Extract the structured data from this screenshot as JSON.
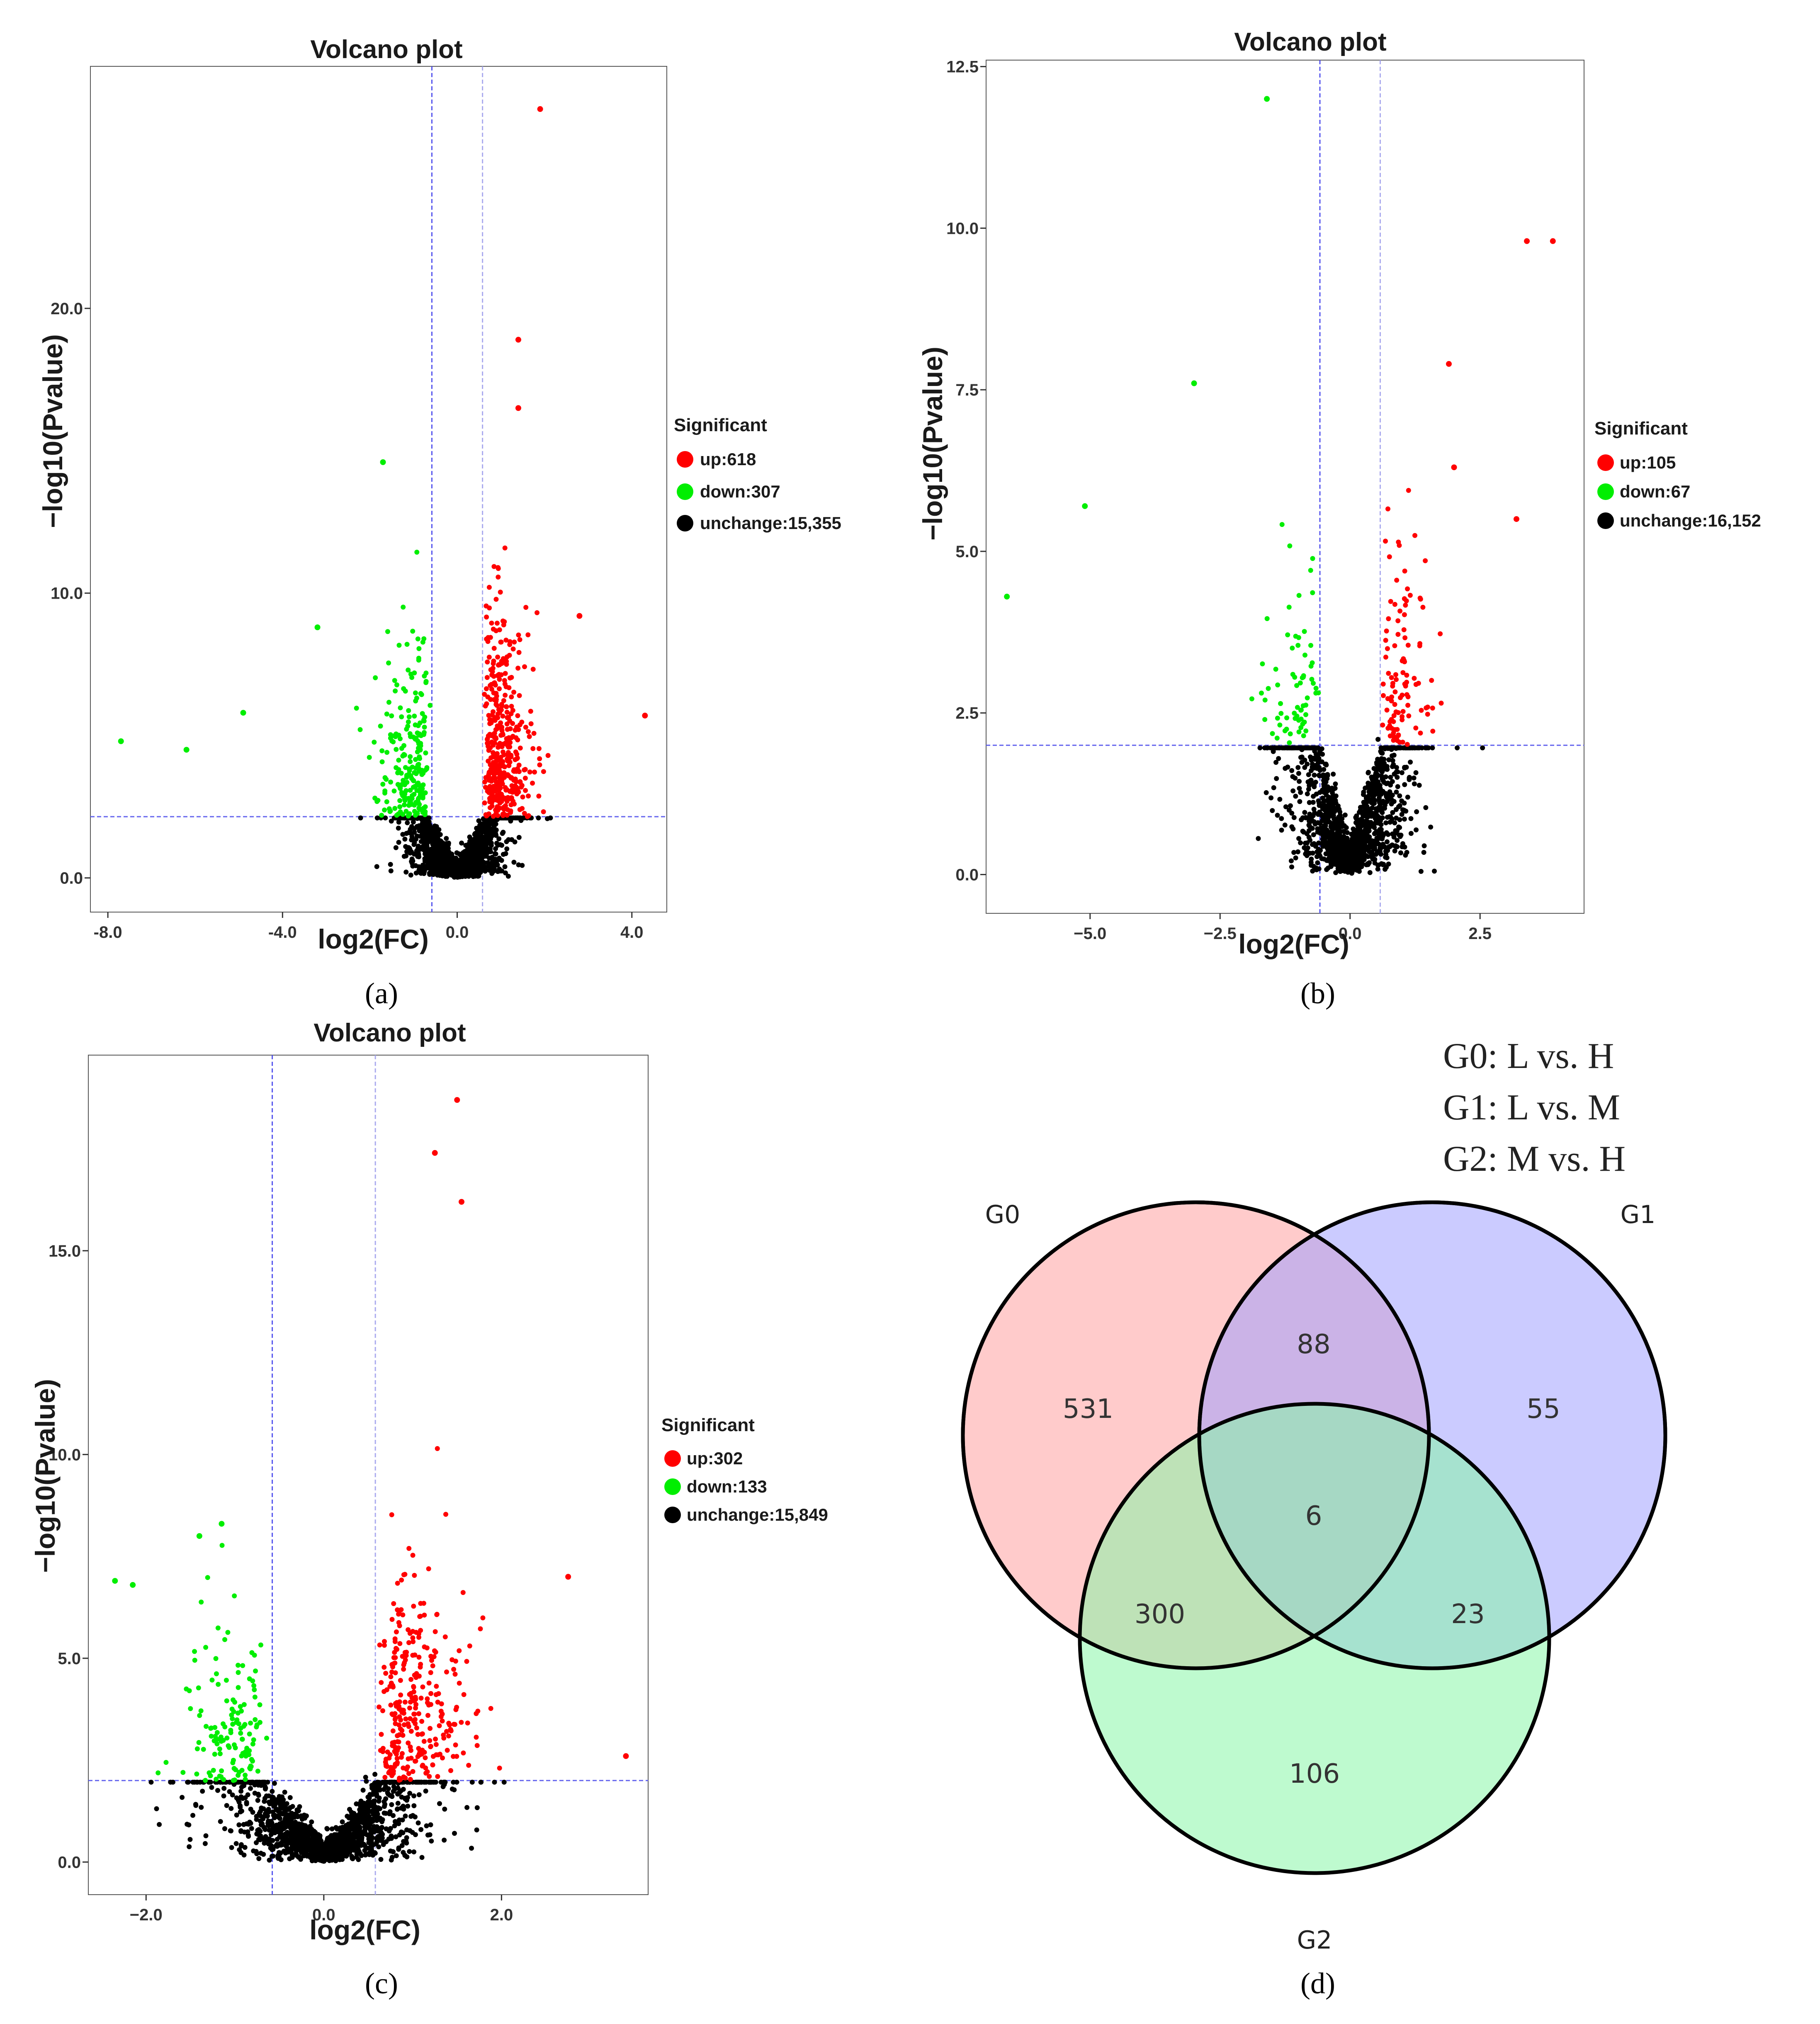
{
  "chart_data": [
    {
      "type": "scatter",
      "panel_label": "(a)",
      "title": "Volcano plot",
      "xlabel": "log2(FC)",
      "ylabel": "−log10(Pvalue)",
      "xlim": [
        -8.4,
        4.8
      ],
      "ylim": [
        -1.2,
        28.5
      ],
      "xticks": [
        -8.0,
        -4.0,
        0.0,
        4.0
      ],
      "xtick_labels": [
        "-8.0",
        "-4.0",
        "0.0",
        "4.0"
      ],
      "yticks": [
        0.0,
        10.0,
        20.0
      ],
      "ytick_labels": [
        "0.0",
        "10.0",
        "20.0"
      ],
      "vlines": [
        -0.58,
        0.58
      ],
      "hline": 2.15,
      "legend": {
        "title": "Significant",
        "entries": [
          {
            "label": "up:618",
            "color": "#ff0000"
          },
          {
            "label": "down:307",
            "color": "#00ee00"
          },
          {
            "label": "unchange:15,355",
            "color": "#000000"
          }
        ]
      },
      "series": [
        {
          "name": "up",
          "count": 618,
          "color": "#ff0000"
        },
        {
          "name": "down",
          "count": 307,
          "color": "#00ee00"
        },
        {
          "name": "unchange",
          "count": 15355,
          "color": "#000000"
        }
      ],
      "notable_points": [
        {
          "x": 1.9,
          "y": 27.0,
          "group": "up"
        },
        {
          "x": 1.4,
          "y": 18.9,
          "group": "up"
        },
        {
          "x": 1.4,
          "y": 16.5,
          "group": "up"
        },
        {
          "x": 2.8,
          "y": 9.2,
          "group": "up"
        },
        {
          "x": 4.3,
          "y": 5.7,
          "group": "up"
        },
        {
          "x": -1.7,
          "y": 14.6,
          "group": "down"
        },
        {
          "x": -3.2,
          "y": 8.8,
          "group": "down"
        },
        {
          "x": -7.7,
          "y": 4.8,
          "group": "down"
        },
        {
          "x": -6.2,
          "y": 4.5,
          "group": "down"
        },
        {
          "x": -4.9,
          "y": 5.8,
          "group": "down"
        }
      ]
    },
    {
      "type": "scatter",
      "panel_label": "(b)",
      "title": "Volcano plot",
      "xlabel": "log2(FC)",
      "ylabel": "−log10(Pvalue)",
      "xlim": [
        -7.0,
        4.5
      ],
      "ylim": [
        -0.6,
        12.6
      ],
      "xticks": [
        -5.0,
        -2.5,
        0.0,
        2.5
      ],
      "xtick_labels": [
        "−5.0",
        "−2.5",
        "0.0",
        "2.5"
      ],
      "yticks": [
        0.0,
        2.5,
        5.0,
        7.5,
        10.0,
        12.5
      ],
      "ytick_labels": [
        "0.0",
        "2.5",
        "5.0",
        "7.5",
        "10.0",
        "12.5"
      ],
      "vlines": [
        -0.58,
        0.58
      ],
      "hline": 2.0,
      "legend": {
        "title": "Significant",
        "entries": [
          {
            "label": "up:105",
            "color": "#ff0000"
          },
          {
            "label": "down:67",
            "color": "#00ee00"
          },
          {
            "label": "unchange:16,152",
            "color": "#000000"
          }
        ]
      },
      "series": [
        {
          "name": "up",
          "count": 105,
          "color": "#ff0000"
        },
        {
          "name": "down",
          "count": 67,
          "color": "#00ee00"
        },
        {
          "name": "unchange",
          "count": 16152,
          "color": "#000000"
        }
      ],
      "notable_points": [
        {
          "x": -1.6,
          "y": 12.0,
          "group": "down"
        },
        {
          "x": -3.0,
          "y": 7.6,
          "group": "down"
        },
        {
          "x": -5.1,
          "y": 5.7,
          "group": "down"
        },
        {
          "x": -6.6,
          "y": 4.3,
          "group": "down"
        },
        {
          "x": 3.4,
          "y": 9.8,
          "group": "up"
        },
        {
          "x": 3.9,
          "y": 9.8,
          "group": "up"
        },
        {
          "x": 1.9,
          "y": 7.9,
          "group": "up"
        },
        {
          "x": 2.0,
          "y": 6.3,
          "group": "up"
        },
        {
          "x": 3.2,
          "y": 5.5,
          "group": "up"
        }
      ]
    },
    {
      "type": "scatter",
      "panel_label": "(c)",
      "title": "Volcano plot",
      "xlabel": "log2(FC)",
      "ylabel": "−log10(Pvalue)",
      "xlim": [
        -2.65,
        3.65
      ],
      "ylim": [
        -0.8,
        19.8
      ],
      "xticks": [
        -2.0,
        0.0,
        2.0
      ],
      "xtick_labels": [
        "−2.0",
        "0.0",
        "2.0"
      ],
      "yticks": [
        0.0,
        5.0,
        10.0,
        15.0
      ],
      "ytick_labels": [
        "0.0",
        "5.0",
        "10.0",
        "15.0"
      ],
      "vlines": [
        -0.58,
        0.58
      ],
      "hline": 2.0,
      "legend": {
        "title": "Significant",
        "entries": [
          {
            "label": "up:302",
            "color": "#ff0000"
          },
          {
            "label": "down:133",
            "color": "#00ee00"
          },
          {
            "label": "unchange:15,849",
            "color": "#000000"
          }
        ]
      },
      "series": [
        {
          "name": "up",
          "count": 302,
          "color": "#ff0000"
        },
        {
          "name": "down",
          "count": 133,
          "color": "#00ee00"
        },
        {
          "name": "unchange",
          "count": 15849,
          "color": "#000000"
        }
      ],
      "notable_points": [
        {
          "x": 1.5,
          "y": 18.7,
          "group": "up"
        },
        {
          "x": 1.25,
          "y": 17.4,
          "group": "up"
        },
        {
          "x": 1.55,
          "y": 16.2,
          "group": "up"
        },
        {
          "x": 2.75,
          "y": 7.0,
          "group": "up"
        },
        {
          "x": 3.4,
          "y": 2.6,
          "group": "up"
        },
        {
          "x": -1.15,
          "y": 8.3,
          "group": "down"
        },
        {
          "x": -1.4,
          "y": 8.0,
          "group": "down"
        },
        {
          "x": -2.35,
          "y": 6.9,
          "group": "down"
        },
        {
          "x": -2.15,
          "y": 6.8,
          "group": "down"
        }
      ]
    },
    {
      "type": "venn",
      "panel_label": "(d)",
      "legend_lines": [
        "G0: L vs. H",
        "G1: L vs. M",
        "G2: M vs. H"
      ],
      "sets": [
        {
          "name": "G0",
          "color": "#ffa0a0"
        },
        {
          "name": "G1",
          "color": "#a0a0ff"
        },
        {
          "name": "G2",
          "color": "#88f5a8"
        }
      ],
      "regions": [
        {
          "sets": [
            "G0"
          ],
          "value": 531
        },
        {
          "sets": [
            "G1"
          ],
          "value": 55
        },
        {
          "sets": [
            "G2"
          ],
          "value": 106
        },
        {
          "sets": [
            "G0",
            "G1"
          ],
          "value": 88
        },
        {
          "sets": [
            "G0",
            "G2"
          ],
          "value": 300
        },
        {
          "sets": [
            "G1",
            "G2"
          ],
          "value": 23
        },
        {
          "sets": [
            "G0",
            "G1",
            "G2"
          ],
          "value": 6
        }
      ]
    }
  ]
}
